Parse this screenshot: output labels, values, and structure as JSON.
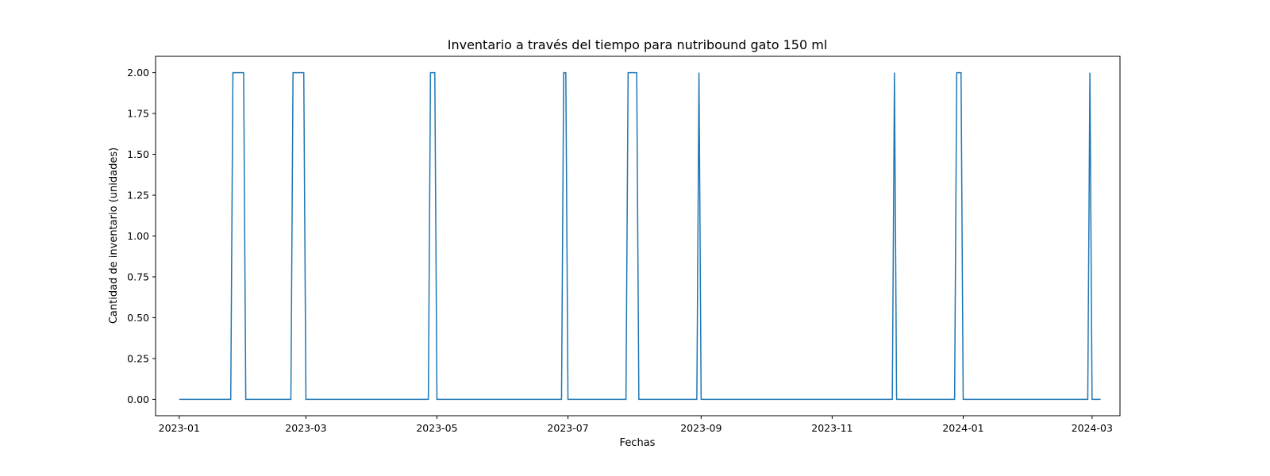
{
  "chart_data": {
    "type": "line",
    "title": "Inventario a través del tiempo para nutribound gato 150 ml",
    "xlabel": "Fechas",
    "ylabel": "Cantidad de inventario (unidades)",
    "xlim": [
      "2022-12-21",
      "2024-03-14"
    ],
    "ylim": [
      -0.1,
      2.1
    ],
    "x_ticks": [
      "2023-01",
      "2023-03",
      "2023-05",
      "2023-07",
      "2023-09",
      "2023-11",
      "2024-01",
      "2024-03"
    ],
    "y_ticks": [
      "0.00",
      "0.25",
      "0.50",
      "0.75",
      "1.00",
      "1.25",
      "1.50",
      "1.75",
      "2.00"
    ],
    "grid": false,
    "color": "#1f77b4",
    "series": [
      {
        "x": [
          "2023-01-01",
          "2023-01-25",
          "2023-01-26",
          "2023-01-31",
          "2023-02-01",
          "2023-02-22",
          "2023-02-23",
          "2023-02-28",
          "2023-03-01",
          "2023-04-27",
          "2023-04-28",
          "2023-04-30",
          "2023-05-01",
          "2023-06-28",
          "2023-06-29",
          "2023-06-30",
          "2023-07-01",
          "2023-07-28",
          "2023-07-29",
          "2023-08-02",
          "2023-08-03",
          "2023-08-30",
          "2023-08-31",
          "2023-09-01",
          "2023-11-29",
          "2023-11-30",
          "2023-12-01",
          "2023-12-28",
          "2023-12-29",
          "2023-12-31",
          "2024-01-01",
          "2024-02-28",
          "2024-02-29",
          "2024-03-01",
          "2024-03-05"
        ],
        "y": [
          0,
          0,
          2,
          2,
          0,
          0,
          2,
          2,
          0,
          0,
          2,
          2,
          0,
          0,
          2,
          2,
          0,
          0,
          2,
          2,
          0,
          0,
          2,
          0,
          0,
          2,
          0,
          0,
          2,
          2,
          0,
          0,
          2,
          0,
          0
        ]
      }
    ]
  }
}
